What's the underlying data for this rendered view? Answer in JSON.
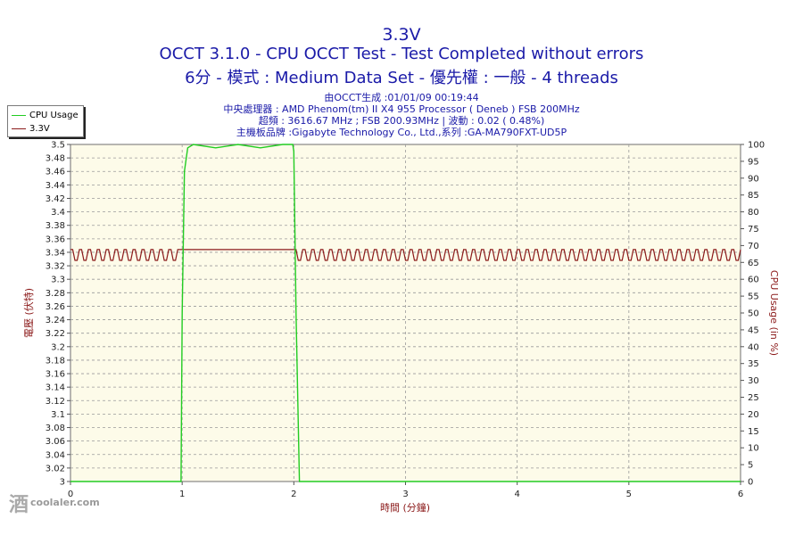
{
  "header": {
    "title": "3.3V",
    "subtitle_1": "OCCT 3.1.0 - CPU OCCT Test - Test Completed without errors",
    "subtitle_2": "6分 - 模式 : Medium Data Set - 優先權 : 一般 - 4 threads",
    "info_lines": [
      "由OCCT生成 :01/01/09 00:19:44",
      "中央處理器 : AMD Phenom(tm) II X4 955 Processor ( Deneb ) FSB 200MHz",
      "超頻 : 3616.67 MHz ; FSB 200.93MHz | 波動 : 0.02 ( 0.48%)",
      "主機板品牌 :Gigabyte Technology Co., Ltd.,系列 :GA-MA790FXT-UD5P"
    ]
  },
  "legend": [
    {
      "label": "CPU Usage",
      "color": "#22cc22"
    },
    {
      "label": "3.3V",
      "color": "#8b1a1a"
    }
  ],
  "watermark": {
    "text": "coolaler.com",
    "mark": "酒"
  },
  "chart_data": {
    "type": "line",
    "xlabel": "時間 (分鐘)",
    "ylabel_left": "電壓 (伏特)",
    "ylabel_right": "CPU Usage (in %)",
    "xlim": [
      0,
      6
    ],
    "ylim_left": [
      3.0,
      3.5
    ],
    "ylim_right": [
      0,
      100
    ],
    "x_ticks": [
      0,
      1,
      2,
      3,
      4,
      5,
      6
    ],
    "y_left_ticks": [
      "3",
      "3.02",
      "3.04",
      "3.06",
      "3.08",
      "3.1",
      "3.12",
      "3.14",
      "3.16",
      "3.18",
      "3.2",
      "3.22",
      "3.24",
      "3.26",
      "3.28",
      "3.3",
      "3.32",
      "3.34",
      "3.36",
      "3.38",
      "3.4",
      "3.42",
      "3.44",
      "3.46",
      "3.48",
      "3.5"
    ],
    "y_right_ticks": [
      0,
      5,
      10,
      15,
      20,
      25,
      30,
      35,
      40,
      45,
      50,
      55,
      60,
      65,
      70,
      75,
      80,
      85,
      90,
      95,
      100
    ],
    "grid": true,
    "legend_position": "top-left",
    "series": [
      {
        "name": "CPU Usage",
        "axis": "right",
        "color": "#22cc22",
        "x": [
          0,
          0.99,
          1.0,
          1.02,
          1.05,
          1.1,
          1.3,
          1.5,
          1.7,
          1.9,
          1.99,
          2.0,
          2.02,
          2.05,
          2.1,
          3,
          4,
          5,
          6
        ],
        "y": [
          0,
          0,
          50,
          92,
          99,
          100,
          99,
          100,
          99,
          100,
          100,
          98,
          50,
          0,
          0,
          0,
          0,
          0,
          0
        ]
      },
      {
        "name": "3.3V",
        "axis": "left",
        "color": "#8b1a1a",
        "low": 3.328,
        "high": 3.344,
        "oscillation_period_min": 0.08,
        "flat_segment": {
          "x": [
            1.0,
            2.0
          ],
          "y": 3.344
        }
      }
    ]
  }
}
